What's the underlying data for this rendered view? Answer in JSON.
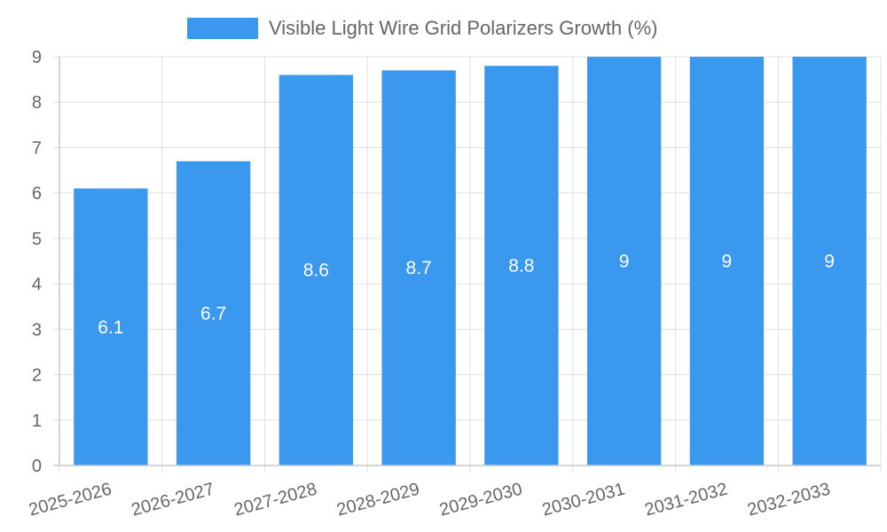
{
  "chart_data": {
    "type": "bar",
    "categories": [
      "2025-2026",
      "2026-2027",
      "2027-2028",
      "2028-2029",
      "2029-2030",
      "2030-2031",
      "2031-2032",
      "2032-2033"
    ],
    "series": [
      {
        "name": "Visible Light Wire Grid Polarizers Growth (%)",
        "values": [
          6.1,
          6.7,
          8.6,
          8.7,
          8.8,
          9,
          9,
          9
        ],
        "color": "#3a99ee"
      }
    ],
    "value_labels": [
      "6.1",
      "6.7",
      "8.6",
      "8.7",
      "8.8",
      "9",
      "9",
      "9"
    ],
    "y_ticks": [
      "0",
      "1",
      "2",
      "3",
      "4",
      "5",
      "6",
      "7",
      "8",
      "9"
    ],
    "ylim": [
      0,
      9
    ],
    "legend_position": "top-center",
    "grid": true,
    "title": "",
    "xlabel": "",
    "ylabel": ""
  }
}
